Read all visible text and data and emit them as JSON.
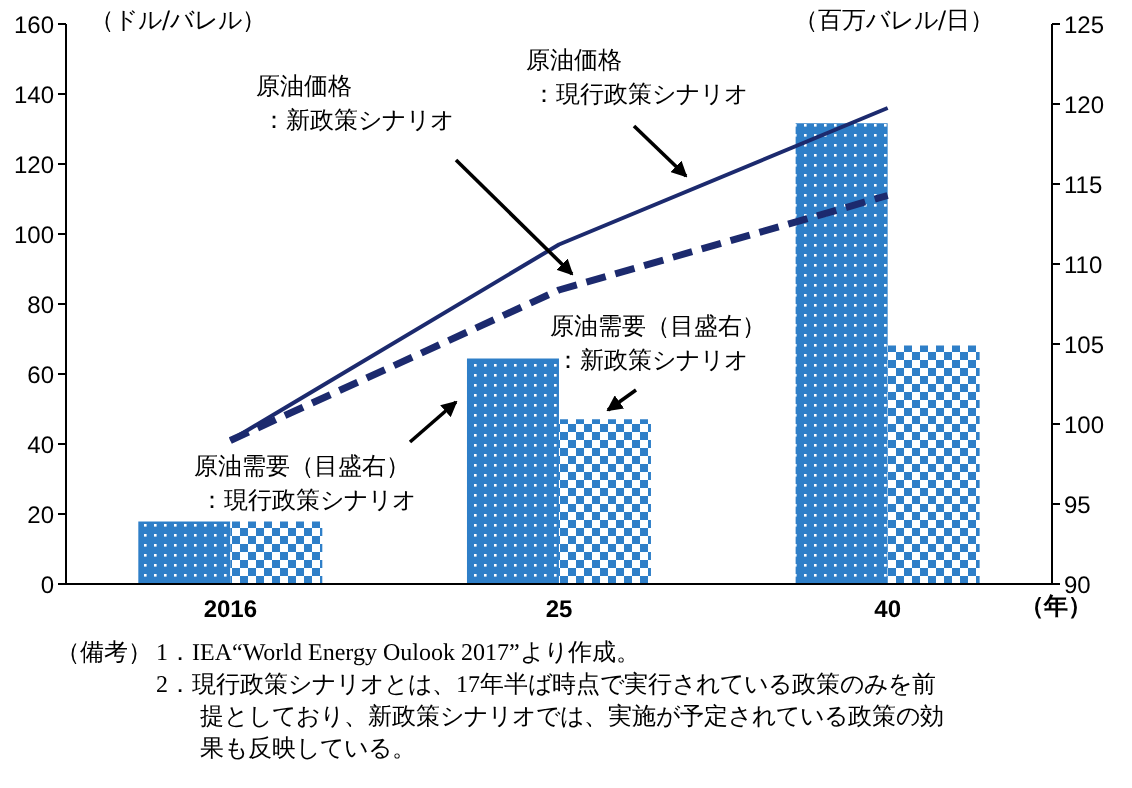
{
  "chart_data": {
    "type": "bar",
    "categories": [
      "2016",
      "25",
      "40"
    ],
    "xlabel": "（年）",
    "ylabel": "（ドル/バレル）",
    "y2label": "（百万バレル/日）",
    "ylim": [
      0,
      160
    ],
    "yticks": [
      0,
      20,
      40,
      60,
      80,
      100,
      120,
      140,
      160
    ],
    "y2lim": [
      90,
      125
    ],
    "y2ticks": [
      90,
      95,
      100,
      105,
      110,
      115,
      120,
      125
    ],
    "grid": false,
    "legend": false,
    "marker": "none",
    "series": [
      {
        "name": "原油需要（目盛右）：現行政策シナリオ",
        "axis": "y2",
        "color": "#2f7fc8",
        "values": [
          93.9,
          104.1,
          118.8
        ]
      },
      {
        "name": "原油需要（目盛右）：新政策シナリオ",
        "axis": "y2",
        "color": "#2f7fc8",
        "values": [
          93.9,
          100.3,
          104.9
        ]
      },
      {
        "name": "原油価格：現行政策シナリオ",
        "type": "line",
        "color": "#1c2a6e",
        "line_style": "solid",
        "values": [
          41,
          97,
          136
        ]
      },
      {
        "name": "原油価格：新政策シナリオ",
        "type": "line",
        "color": "#1c2a6e",
        "line_style": "dashed",
        "values": [
          41,
          84,
          111
        ]
      }
    ],
    "annotations": [
      "（備考）",
      "1．IEA“World Energy Oulook 2017”より作成。",
      "2．現行政策シナリオとは、17年半ば時点で実行されている政策のみを前提としており、新政策シナリオでは、実施が予定されている政策の効果も反映している。"
    ]
  }
}
